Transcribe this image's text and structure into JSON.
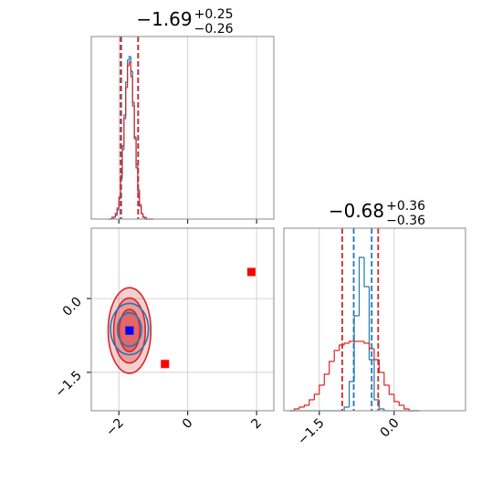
{
  "chart_data": [
    {
      "type": "histogram",
      "title": {
        "value": "−1.69",
        "upper": "+0.25",
        "lower": "−0.26"
      },
      "bins": [
        -2.3,
        -2.25,
        -2.2,
        -2.15,
        -2.1,
        -2.05,
        -2.0,
        -1.95,
        -1.9,
        -1.85,
        -1.8,
        -1.75,
        -1.7,
        -1.65,
        -1.6,
        -1.55,
        -1.5,
        -1.45,
        -1.4,
        -1.35,
        -1.3,
        -1.25,
        -1.2,
        -1.15,
        -1.1,
        -1.05,
        -1.0
      ],
      "series": [
        {
          "color": "#1f77b4",
          "values": [
            0,
            0,
            0,
            1,
            2,
            5,
            11,
            22,
            38,
            57,
            75,
            87,
            89,
            81,
            64,
            45,
            28,
            15,
            7,
            3,
            1,
            0,
            0,
            0,
            0,
            0
          ]
        },
        {
          "color": "#d62728",
          "values": [
            0,
            0,
            1,
            1,
            3,
            6,
            12,
            24,
            40,
            55,
            72,
            84,
            86,
            78,
            62,
            44,
            30,
            16,
            8,
            3,
            1,
            1,
            0,
            0,
            0,
            0
          ]
        }
      ],
      "quantiles": [
        {
          "color": "#1f77b4",
          "values": [
            -1.93,
            -1.44
          ]
        },
        {
          "color": "#d62728",
          "values": [
            -1.95,
            -1.44
          ]
        }
      ],
      "xlim": [
        -2.8,
        2.5
      ],
      "xticks": [
        -2,
        0,
        2
      ],
      "xtick_labels": false,
      "ylim": [
        0,
        100
      ],
      "grid": true
    },
    {
      "type": "scatter",
      "contours": [
        {
          "color": "#d62728",
          "fill": "#d6272838",
          "cx": -1.69,
          "cy": -0.65,
          "rx": 0.62,
          "ry": 0.87
        },
        {
          "color": "#d62728",
          "fill": "#d6272850",
          "cx": -1.69,
          "cy": -0.65,
          "rx": 0.46,
          "ry": 0.66
        },
        {
          "color": "#d62728",
          "fill": "#d6272870",
          "cx": -1.69,
          "cy": -0.65,
          "rx": 0.3,
          "ry": 0.43
        },
        {
          "color": "#1f77b4",
          "fill": "none",
          "cx": -1.69,
          "cy": -0.62,
          "rx": 0.55,
          "ry": 0.52
        },
        {
          "color": "#1f77b4",
          "fill": "none",
          "cx": -1.69,
          "cy": -0.63,
          "rx": 0.35,
          "ry": 0.34
        }
      ],
      "series": [
        {
          "color": "#ff0000",
          "x": [
            -1.69,
            -0.66,
            1.85
          ],
          "y": [
            -0.65,
            -1.33,
            0.54
          ]
        },
        {
          "color": "#0000ff",
          "x": [
            -1.69
          ],
          "y": [
            -0.65
          ]
        }
      ],
      "xlim": [
        -2.8,
        2.5
      ],
      "xticks": [
        {
          "value": -2,
          "label": "−2"
        },
        0,
        2
      ],
      "ylim": [
        -2.28,
        1.43
      ],
      "yticks": [
        {
          "value": -1.5,
          "label": "−1.5"
        },
        {
          "value": 0,
          "label": "0.0"
        }
      ],
      "grid": true
    },
    {
      "type": "histogram",
      "title": {
        "value": "−0.68",
        "upper": "+0.36",
        "lower": "−0.36"
      },
      "bins": [
        -2.1,
        -2.0,
        -1.9,
        -1.8,
        -1.7,
        -1.6,
        -1.5,
        -1.4,
        -1.3,
        -1.2,
        -1.1,
        -1.0,
        -0.9,
        -0.8,
        -0.7,
        -0.6,
        -0.5,
        -0.4,
        -0.3,
        -0.2,
        -0.1,
        0.0,
        0.1,
        0.2,
        0.3,
        0.4,
        0.5
      ],
      "series": [
        {
          "color": "#1f77b4",
          "values": [
            0,
            0,
            0,
            0,
            0,
            0,
            0,
            0,
            0,
            0,
            0,
            2,
            16,
            52,
            84,
            68,
            28,
            6,
            1,
            0,
            0,
            0,
            0,
            0,
            0,
            0
          ]
        },
        {
          "color": "#d62728",
          "values": [
            0,
            1,
            2,
            3,
            6,
            9,
            14,
            20,
            27,
            33,
            36,
            37,
            38,
            38,
            38,
            37,
            34,
            28,
            21,
            14,
            9,
            5,
            3,
            1,
            0,
            0
          ]
        }
      ],
      "quantiles": [
        {
          "color": "#1f77b4",
          "values": [
            -0.81,
            -0.45
          ]
        },
        {
          "color": "#d62728",
          "values": [
            -1.04,
            -0.32
          ]
        }
      ],
      "xlim": [
        -2.21,
        1.43
      ],
      "xticks": [
        {
          "value": -1.5,
          "label": "−1.5"
        },
        {
          "value": 0,
          "label": "0.0"
        }
      ],
      "xtick_labels": true,
      "ylim": [
        0,
        100
      ],
      "grid": true
    }
  ]
}
